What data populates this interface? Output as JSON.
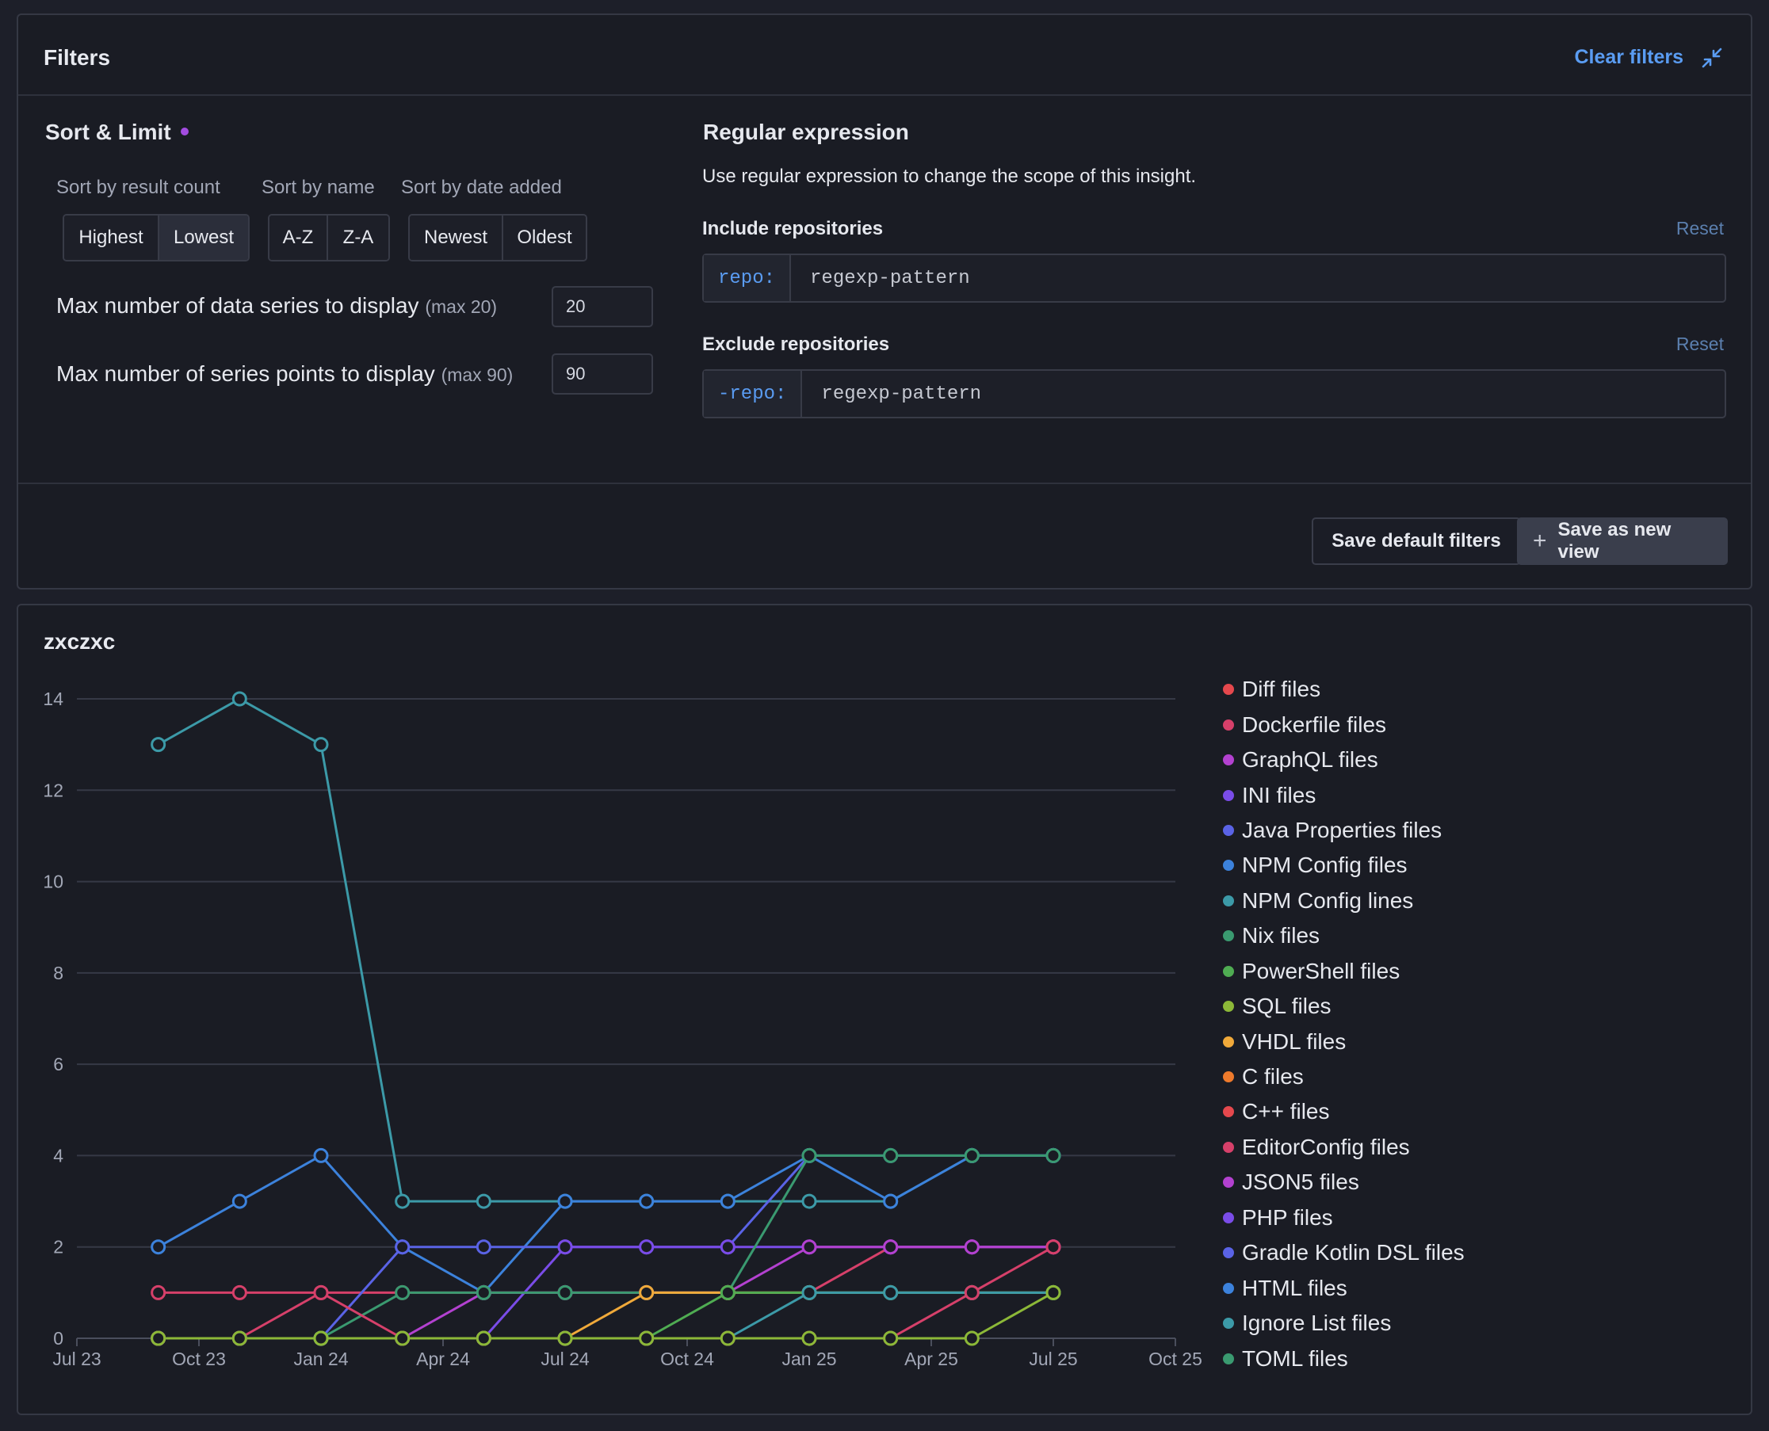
{
  "filters": {
    "title": "Filters",
    "clear_label": "Clear filters",
    "collapse_icon": "collapse-icon",
    "sort_limit": {
      "title": "Sort & Limit",
      "indicator_color": "#a34ce0",
      "sort_by_count_label": "Sort by result count",
      "sort_by_name_label": "Sort by name",
      "sort_by_date_label": "Sort by date added",
      "count_options": [
        "Highest",
        "Lowest"
      ],
      "count_selected": "Lowest",
      "name_options": [
        "A-Z",
        "Z-A"
      ],
      "date_options": [
        "Newest",
        "Oldest"
      ],
      "max_series_label": "Max number of data series to display",
      "max_series_hint": "(max 20)",
      "max_series_value": "20",
      "max_points_label": "Max number of series points to display",
      "max_points_hint": "(max 90)",
      "max_points_value": "90"
    },
    "regex": {
      "title": "Regular expression",
      "description": "Use regular expression to change the scope of this insight.",
      "include_label": "Include repositories",
      "include_prefix": "repo:",
      "include_placeholder": "regexp-pattern",
      "exclude_label": "Exclude repositories",
      "exclude_prefix": "-repo:",
      "exclude_placeholder": "regexp-pattern",
      "reset_label": "Reset"
    },
    "actions": {
      "save_default": "Save default filters",
      "save_new_view": "Save as new view",
      "plus_icon": "plus-icon"
    }
  },
  "chart": {
    "title": "zxczxc"
  },
  "chart_data": {
    "type": "line",
    "x": [
      "2023-09",
      "2023-11",
      "2024-01",
      "2024-03",
      "2024-05",
      "2024-07",
      "2024-09",
      "2024-11",
      "2025-01",
      "2025-03",
      "2025-05",
      "2025-07"
    ],
    "xticks": [
      "Jul 23",
      "Oct 23",
      "Jan 24",
      "Apr 24",
      "Jul 24",
      "Oct 24",
      "Jan 25",
      "Apr 25",
      "Jul 25",
      "Oct 25"
    ],
    "xlim": [
      "2023-07",
      "2025-10"
    ],
    "ylim": [
      0,
      14
    ],
    "yticks": [
      0,
      2,
      4,
      6,
      8,
      10,
      12,
      14
    ],
    "grid": true,
    "legend_position": "right",
    "legend": [
      {
        "name": "Diff files",
        "color": "#e5484d"
      },
      {
        "name": "Dockerfile files",
        "color": "#d6406a"
      },
      {
        "name": "GraphQL files",
        "color": "#b341d0"
      },
      {
        "name": "INI files",
        "color": "#7a4ce8"
      },
      {
        "name": "Java Properties files",
        "color": "#5a63e6"
      },
      {
        "name": "NPM Config files",
        "color": "#3c82dc"
      },
      {
        "name": "NPM Config lines",
        "color": "#3c9aa8"
      },
      {
        "name": "Nix files",
        "color": "#3a9a70"
      },
      {
        "name": "PowerShell files",
        "color": "#4fac52"
      },
      {
        "name": "SQL files",
        "color": "#8cb838"
      },
      {
        "name": "VHDL files",
        "color": "#f0a93a"
      },
      {
        "name": "C files",
        "color": "#ee7a2c"
      },
      {
        "name": "C++ files",
        "color": "#e5484d"
      },
      {
        "name": "EditorConfig files",
        "color": "#d6406a"
      },
      {
        "name": "JSON5 files",
        "color": "#b341d0"
      },
      {
        "name": "PHP files",
        "color": "#7a4ce8"
      },
      {
        "name": "Gradle Kotlin DSL files",
        "color": "#5a63e6"
      },
      {
        "name": "HTML files",
        "color": "#3c82dc"
      },
      {
        "name": "Ignore List files",
        "color": "#3c9aa8"
      },
      {
        "name": "TOML files",
        "color": "#3a9a70"
      }
    ],
    "series": [
      {
        "color": "#3c9aa8",
        "values": [
          13,
          14,
          13,
          3,
          3,
          3,
          3,
          3,
          3,
          3,
          4,
          4
        ]
      },
      {
        "color": "#3c82dc",
        "values": [
          2,
          3,
          4,
          2,
          1,
          3,
          3,
          3,
          4,
          3,
          4,
          4
        ]
      },
      {
        "color": "#d6406a",
        "values": [
          1,
          1,
          1,
          1,
          1,
          1,
          1,
          1,
          1,
          2,
          2,
          2
        ]
      },
      {
        "color": "#5a63e6",
        "values": [
          0,
          0,
          0,
          2,
          2,
          2,
          2,
          2,
          4,
          4,
          4,
          4
        ]
      },
      {
        "color": "#7a4ce8",
        "values": [
          0,
          0,
          0,
          0,
          0,
          2,
          2,
          2,
          2,
          2,
          2,
          2
        ]
      },
      {
        "color": "#b341d0",
        "values": [
          0,
          0,
          0,
          0,
          1,
          1,
          1,
          1,
          2,
          2,
          2,
          2
        ]
      },
      {
        "color": "#3a9a70",
        "values": [
          0,
          0,
          0,
          1,
          1,
          1,
          1,
          1,
          4,
          4,
          4,
          4
        ]
      },
      {
        "color": "#f0a93a",
        "values": [
          0,
          0,
          0,
          0,
          0,
          0,
          1,
          1,
          1,
          1,
          1,
          1
        ]
      },
      {
        "color": "#4fac52",
        "values": [
          0,
          0,
          0,
          0,
          0,
          0,
          0,
          1,
          1,
          1,
          1,
          1
        ]
      },
      {
        "color": "#3c9aa8",
        "values": [
          0,
          0,
          0,
          0,
          0,
          0,
          0,
          0,
          1,
          1,
          1,
          1
        ]
      },
      {
        "color": "#d6406a",
        "values": [
          0,
          0,
          1,
          0,
          0,
          0,
          0,
          0,
          0,
          0,
          1,
          2
        ]
      },
      {
        "color": "#8cb838",
        "values": [
          0,
          0,
          0,
          0,
          0,
          0,
          0,
          0,
          0,
          0,
          0,
          1
        ]
      }
    ]
  }
}
